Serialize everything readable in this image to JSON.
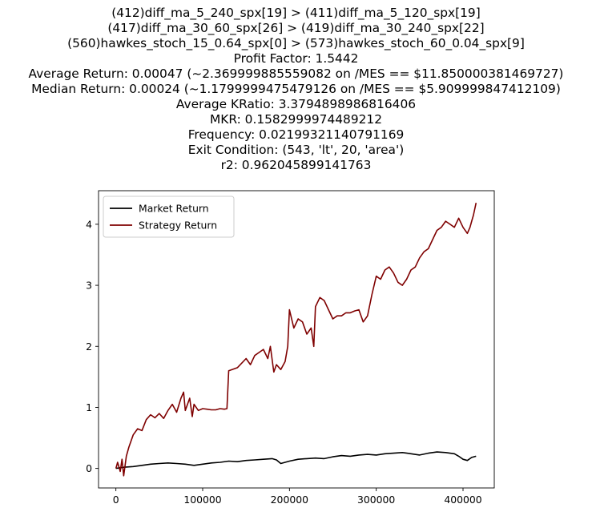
{
  "chart_data": {
    "type": "line",
    "title_lines": [
      "(412)diff_ma_5_240_spx[19] > (411)diff_ma_5_120_spx[19]",
      "(417)diff_ma_30_60_spx[26] > (419)diff_ma_30_240_spx[22]",
      "(560)hawkes_stoch_15_0.64_spx[0] > (573)hawkes_stoch_60_0.04_spx[9]",
      "Profit Factor: 1.5442",
      "Average Return: 0.00047 (~2.369999885559082 on /MES == $11.850000381469727)",
      "Median Return: 0.00024 (~1.1799999475479126 on /MES == $5.909999847412109)",
      "Average KRatio: 3.3794898986816406",
      "MKR: 0.1582999974489212",
      "Frequency: 0.02199321140791169",
      "Exit Condition: (543, 'lt', 20, 'area')",
      "r2: 0.962045899141763"
    ],
    "xlim": [
      -20000,
      436000
    ],
    "ylim": [
      -0.32,
      4.55
    ],
    "x_ticks": [
      0,
      100000,
      200000,
      300000,
      400000
    ],
    "y_ticks": [
      0,
      1,
      2,
      3,
      4
    ],
    "grid": false,
    "legend_position": "top-left",
    "series": [
      {
        "name": "Market Return",
        "color": "#000000",
        "x": [
          0,
          10000,
          20000,
          30000,
          40000,
          50000,
          60000,
          70000,
          80000,
          90000,
          100000,
          110000,
          120000,
          130000,
          140000,
          150000,
          160000,
          170000,
          180000,
          185000,
          190000,
          200000,
          210000,
          220000,
          230000,
          240000,
          250000,
          260000,
          270000,
          280000,
          290000,
          300000,
          310000,
          320000,
          330000,
          340000,
          350000,
          360000,
          370000,
          380000,
          390000,
          395000,
          400000,
          405000,
          410000,
          415000
        ],
        "values": [
          0.0,
          0.02,
          0.03,
          0.05,
          0.07,
          0.08,
          0.09,
          0.08,
          0.07,
          0.05,
          0.07,
          0.09,
          0.1,
          0.12,
          0.11,
          0.13,
          0.14,
          0.15,
          0.16,
          0.14,
          0.08,
          0.12,
          0.15,
          0.16,
          0.17,
          0.16,
          0.19,
          0.21,
          0.2,
          0.22,
          0.23,
          0.22,
          0.24,
          0.25,
          0.26,
          0.24,
          0.22,
          0.25,
          0.27,
          0.26,
          0.24,
          0.2,
          0.15,
          0.13,
          0.18,
          0.2
        ]
      },
      {
        "name": "Strategy Return",
        "color": "#7f0000",
        "x": [
          0,
          2000,
          5000,
          7000,
          9000,
          12000,
          15000,
          20000,
          25000,
          30000,
          35000,
          40000,
          45000,
          50000,
          55000,
          60000,
          65000,
          70000,
          75000,
          78000,
          80000,
          85000,
          88000,
          90000,
          95000,
          100000,
          105000,
          110000,
          115000,
          120000,
          125000,
          128000,
          130000,
          140000,
          150000,
          155000,
          160000,
          165000,
          170000,
          175000,
          178000,
          182000,
          185000,
          190000,
          195000,
          198000,
          200000,
          205000,
          210000,
          215000,
          220000,
          225000,
          228000,
          230000,
          235000,
          240000,
          245000,
          250000,
          255000,
          260000,
          265000,
          270000,
          275000,
          280000,
          285000,
          290000,
          295000,
          300000,
          305000,
          310000,
          315000,
          320000,
          325000,
          330000,
          335000,
          340000,
          345000,
          350000,
          355000,
          360000,
          365000,
          370000,
          375000,
          380000,
          385000,
          390000,
          395000,
          400000,
          405000,
          408000,
          410000,
          412000,
          415000
        ],
        "values": [
          0.0,
          0.1,
          -0.05,
          0.15,
          -0.12,
          0.2,
          0.35,
          0.55,
          0.65,
          0.62,
          0.8,
          0.88,
          0.83,
          0.9,
          0.82,
          0.95,
          1.05,
          0.92,
          1.15,
          1.25,
          0.95,
          1.15,
          0.85,
          1.05,
          0.95,
          0.98,
          0.97,
          0.96,
          0.96,
          0.98,
          0.97,
          0.98,
          1.6,
          1.65,
          1.8,
          1.7,
          1.85,
          1.9,
          1.95,
          1.8,
          2.0,
          1.58,
          1.7,
          1.62,
          1.75,
          2.0,
          2.6,
          2.3,
          2.45,
          2.4,
          2.2,
          2.3,
          2.0,
          2.65,
          2.8,
          2.75,
          2.6,
          2.45,
          2.5,
          2.5,
          2.55,
          2.55,
          2.58,
          2.6,
          2.4,
          2.5,
          2.85,
          3.15,
          3.1,
          3.25,
          3.3,
          3.2,
          3.05,
          3.0,
          3.1,
          3.25,
          3.3,
          3.45,
          3.55,
          3.6,
          3.75,
          3.9,
          3.95,
          4.05,
          4.0,
          3.95,
          4.1,
          3.95,
          3.85,
          3.95,
          4.05,
          4.15,
          4.35
        ]
      }
    ]
  }
}
